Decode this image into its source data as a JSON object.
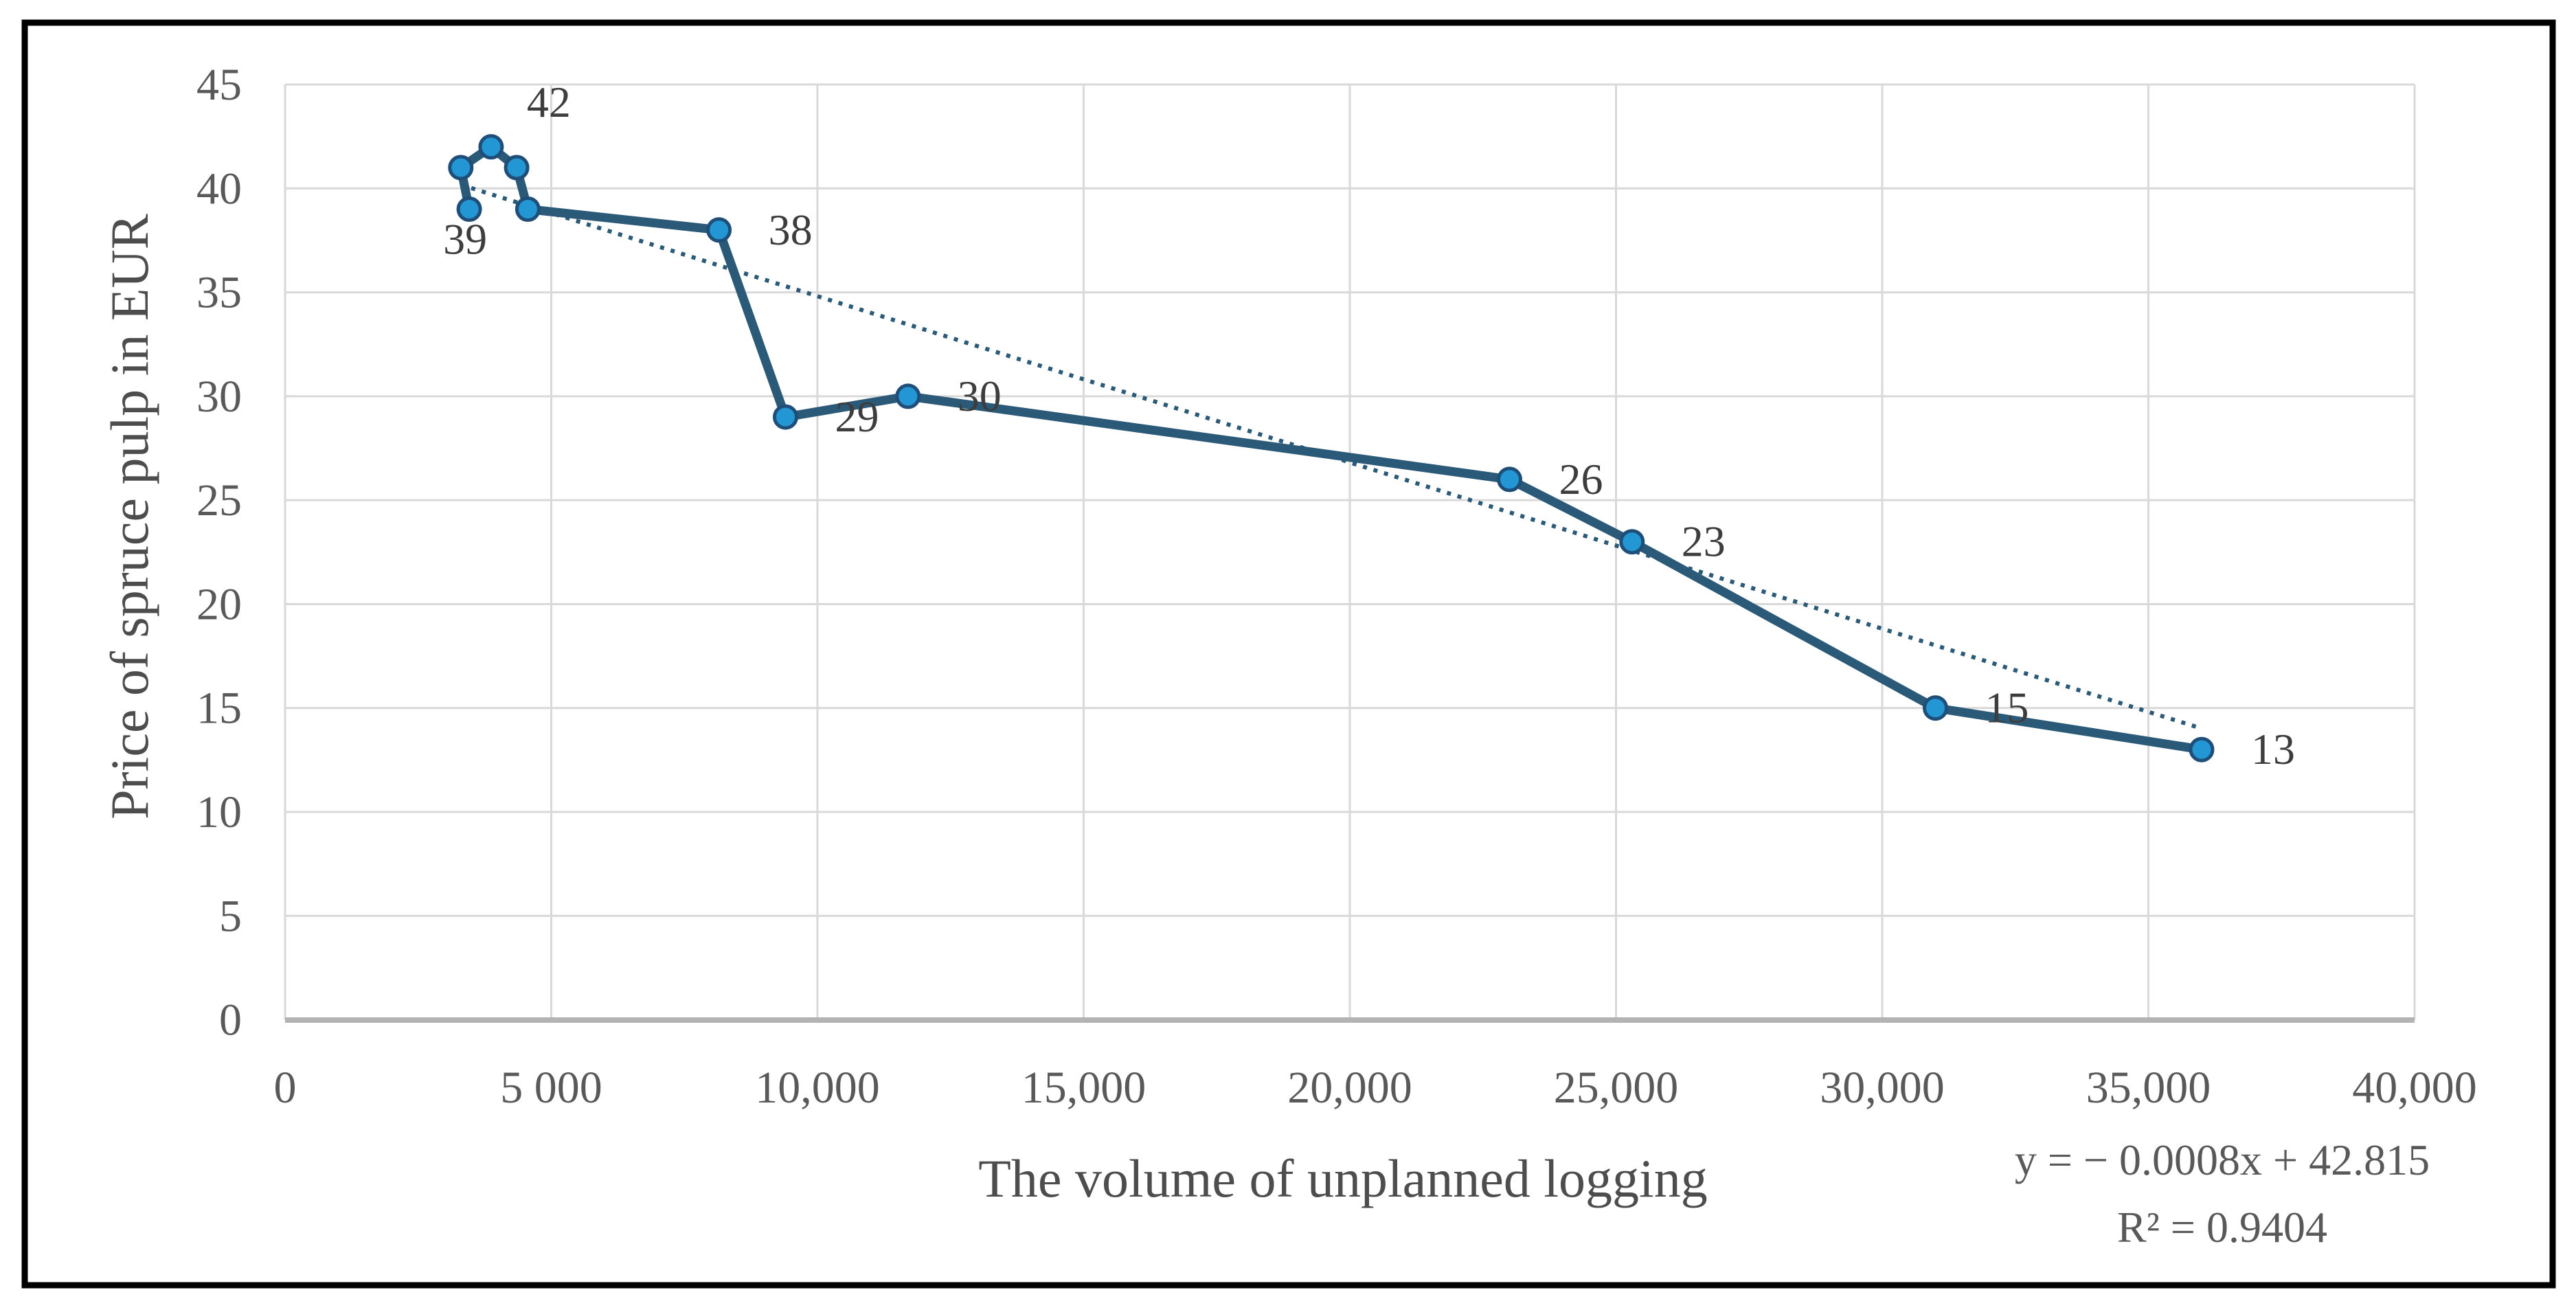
{
  "chart_data": {
    "type": "scatter-line",
    "title": "",
    "xlabel": "The volume of unplanned logging",
    "ylabel": "Price of spruce pulp in EUR",
    "xlim": [
      0,
      40000
    ],
    "ylim": [
      0,
      45
    ],
    "grid": true,
    "x_ticks": [
      {
        "value": 0,
        "label": "0"
      },
      {
        "value": 5000,
        "label": "5 000"
      },
      {
        "value": 10000,
        "label": "10,000"
      },
      {
        "value": 15000,
        "label": "15,000"
      },
      {
        "value": 20000,
        "label": "20,000"
      },
      {
        "value": 25000,
        "label": "25,000"
      },
      {
        "value": 30000,
        "label": "30,000"
      },
      {
        "value": 35000,
        "label": "35,000"
      },
      {
        "value": 40000,
        "label": "40,000"
      }
    ],
    "y_ticks": [
      {
        "value": 0,
        "label": "0"
      },
      {
        "value": 5,
        "label": "5"
      },
      {
        "value": 10,
        "label": "10"
      },
      {
        "value": 15,
        "label": "15"
      },
      {
        "value": 20,
        "label": "20"
      },
      {
        "value": 25,
        "label": "25"
      },
      {
        "value": 30,
        "label": "30"
      },
      {
        "value": 35,
        "label": "35"
      },
      {
        "value": 40,
        "label": "40"
      },
      {
        "value": 45,
        "label": "45"
      }
    ],
    "points": [
      {
        "x": 3460,
        "y": 39,
        "label": "39"
      },
      {
        "x": 3300,
        "y": 41,
        "label": ""
      },
      {
        "x": 3870,
        "y": 42,
        "label": "42"
      },
      {
        "x": 4350,
        "y": 41,
        "label": ""
      },
      {
        "x": 4560,
        "y": 39,
        "label": ""
      },
      {
        "x": 8150,
        "y": 38,
        "label": "38"
      },
      {
        "x": 9400,
        "y": 29,
        "label": "29"
      },
      {
        "x": 11700,
        "y": 30,
        "label": "30"
      },
      {
        "x": 23000,
        "y": 26,
        "label": "26"
      },
      {
        "x": 25300,
        "y": 23,
        "label": "23"
      },
      {
        "x": 31000,
        "y": 15,
        "label": "15"
      },
      {
        "x": 36000,
        "y": 13,
        "label": "13"
      }
    ],
    "trendline": {
      "equation": "y = − 0.0008x + 42.815",
      "r_squared": "R² = 0.9404",
      "slope": -0.0008,
      "intercept": 42.815,
      "x_start": 3300,
      "x_end": 36000
    },
    "legend": null,
    "colors": {
      "marker_fill": "#2397d4",
      "marker_stroke": "#1f4e79",
      "series_line": "#2b5978",
      "trendline": "#2b5978",
      "gridline": "#d9d9d9",
      "axis_line": "#b3b3b3",
      "tick_text": "#595959",
      "title_text": "#4d4d4d",
      "label_text": "#3d3d3d",
      "border": "#000000",
      "background": "#ffffff"
    }
  }
}
